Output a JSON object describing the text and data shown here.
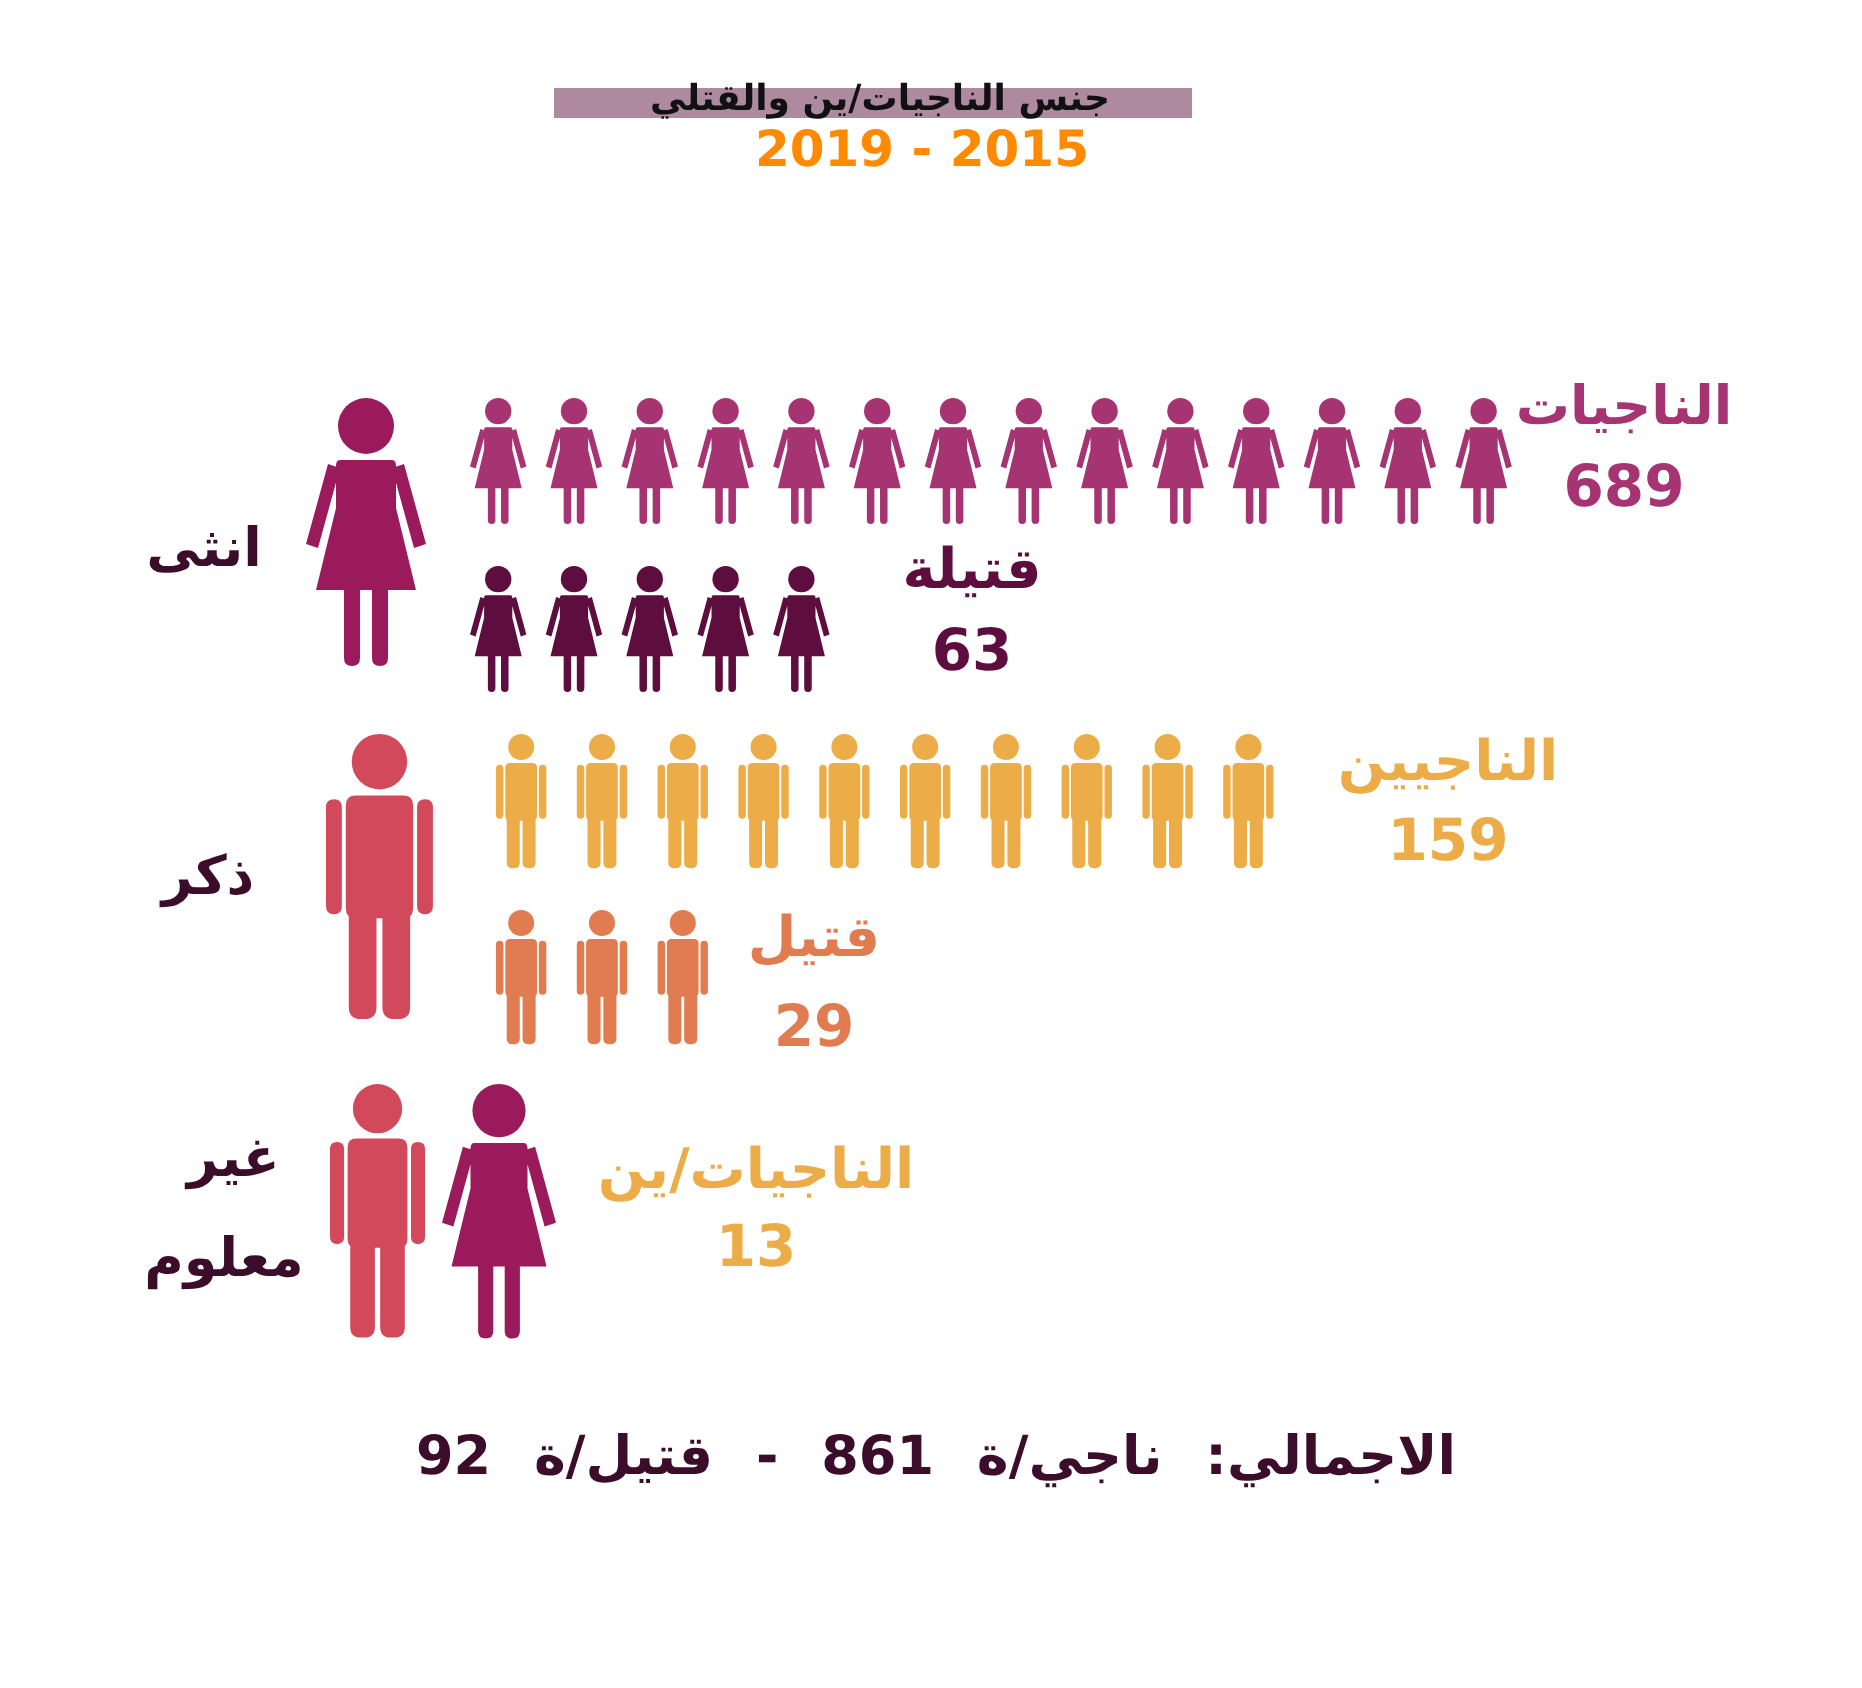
{
  "chart_data": {
    "type": "other",
    "title": "جنس الناجيات/ين والقتلي",
    "subtitle": "2015 - 2019",
    "categories": [
      "الناجيات",
      "قتيلة",
      "الناجيين",
      "قتيل",
      "الناجيات/ين"
    ],
    "series": [
      {
        "name": "انثى",
        "colors": [
          "#a63473",
          "#5d0e3f",
          null,
          null,
          null
        ],
        "values": [
          689,
          63,
          null,
          null,
          null
        ]
      },
      {
        "name": "ذكر",
        "colors": [
          null,
          null,
          "#ecad48",
          "#e07c50",
          null
        ],
        "values": [
          null,
          null,
          159,
          29,
          null
        ]
      },
      {
        "name": "غير معلوم",
        "colors": [
          null,
          null,
          null,
          null,
          "#ecad48"
        ],
        "values": [
          null,
          null,
          null,
          null,
          13
        ]
      }
    ],
    "data_labels": true,
    "annotations": [
      "الاجمالي: ناجي/ة 861 - قتيل/ة 92"
    ]
  }
}
